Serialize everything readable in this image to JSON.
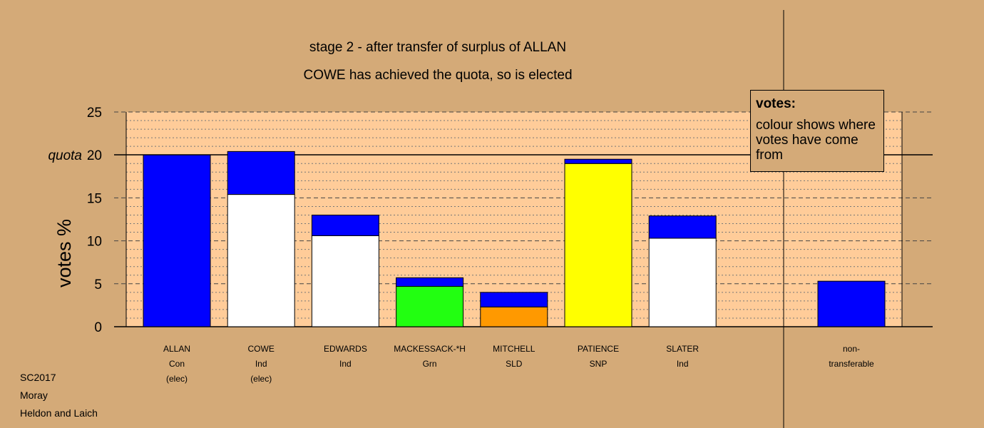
{
  "chart_data": {
    "type": "bar",
    "stacked": true,
    "title": "stage 2 - after transfer of surplus of ALLAN",
    "subtitle": "COWE has achieved the quota, so is elected",
    "ylabel": "votes %",
    "ylim": [
      0,
      25
    ],
    "yticks": [
      0,
      5,
      10,
      15,
      20,
      25
    ],
    "quota": 20,
    "quota_label": "quota",
    "grid": true,
    "categories": [
      {
        "name": "ALLAN",
        "party": "Con",
        "status": "(elec)"
      },
      {
        "name": "COWE",
        "party": "Ind",
        "status": "(elec)"
      },
      {
        "name": "EDWARDS",
        "party": "Ind",
        "status": ""
      },
      {
        "name": "MACKESSACK-*H",
        "party": "Grn",
        "status": ""
      },
      {
        "name": "MITCHELL",
        "party": "SLD",
        "status": ""
      },
      {
        "name": "PATIENCE",
        "party": "SNP",
        "status": ""
      },
      {
        "name": "SLATER",
        "party": "Ind",
        "status": ""
      }
    ],
    "bars": [
      {
        "segments": [
          {
            "value": 20.0,
            "color": "#0000FF"
          }
        ]
      },
      {
        "segments": [
          {
            "value": 15.4,
            "color": "#FFFFFF"
          },
          {
            "value": 5.0,
            "color": "#0000FF"
          }
        ]
      },
      {
        "segments": [
          {
            "value": 10.6,
            "color": "#FFFFFF"
          },
          {
            "value": 2.4,
            "color": "#0000FF"
          }
        ]
      },
      {
        "segments": [
          {
            "value": 4.7,
            "color": "#22FF11"
          },
          {
            "value": 1.0,
            "color": "#0000FF"
          }
        ]
      },
      {
        "segments": [
          {
            "value": 2.3,
            "color": "#FF9900"
          },
          {
            "value": 1.7,
            "color": "#0000FF"
          }
        ]
      },
      {
        "segments": [
          {
            "value": 19.0,
            "color": "#FFFF00"
          },
          {
            "value": 0.5,
            "color": "#0000FF"
          }
        ]
      },
      {
        "segments": [
          {
            "value": 10.3,
            "color": "#FFFFFF"
          },
          {
            "value": 2.6,
            "color": "#0000FF"
          }
        ]
      }
    ],
    "non_transferable": {
      "label_line1": "non-",
      "label_line2": "transferable",
      "value": 5.3,
      "color": "#0000FF"
    },
    "legend": {
      "title": "votes:",
      "text": "colour shows where votes have come from",
      "placement": "top-right"
    }
  },
  "footer": {
    "line1": "SC2017",
    "line2": "Moray",
    "line3": "Heldon and Laich"
  },
  "colors": {
    "background": "#D4AA78",
    "plot_area": "#FFCC99"
  }
}
